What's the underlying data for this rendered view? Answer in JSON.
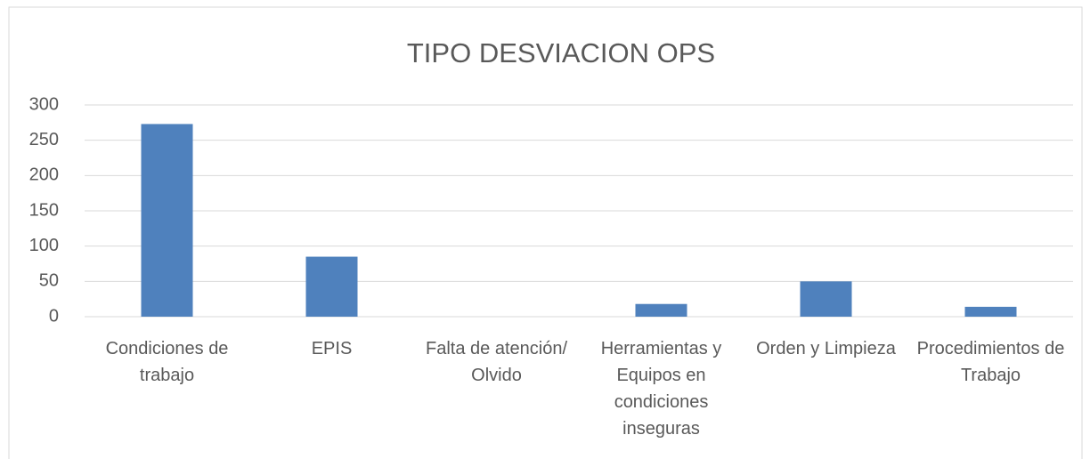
{
  "chart_data": {
    "type": "bar",
    "title": "TIPO DESVIACION OPS",
    "categories": [
      "Condiciones de trabajo",
      "EPIS",
      "Falta de atención/ Olvido",
      "Herramientas y Equipos en condiciones inseguras",
      "Orden y Limpieza",
      "Procedimientos de Trabajo"
    ],
    "values": [
      273,
      85,
      0,
      18,
      50,
      14
    ],
    "color": "#4f81bd",
    "ylim": [
      0,
      300
    ],
    "yticks": [
      0,
      50,
      100,
      150,
      200,
      250,
      300
    ],
    "grid": true
  }
}
